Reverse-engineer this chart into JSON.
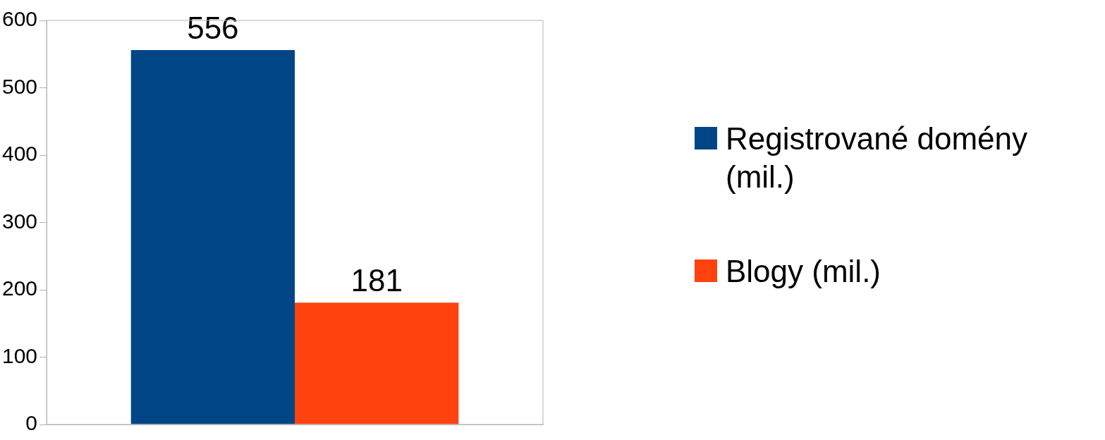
{
  "chart_data": {
    "type": "bar",
    "categories": [
      null
    ],
    "series": [
      {
        "name": "Registrované domény (mil.)",
        "color": "#004586",
        "values": [
          556
        ]
      },
      {
        "name": "Blogy (mil.)",
        "color": "#ff420e",
        "values": [
          181
        ]
      }
    ],
    "ylim": [
      0,
      600
    ],
    "yticks": [
      0,
      100,
      200,
      300,
      400,
      500,
      600
    ],
    "grid": false,
    "legend": "right",
    "data_labels": true
  }
}
